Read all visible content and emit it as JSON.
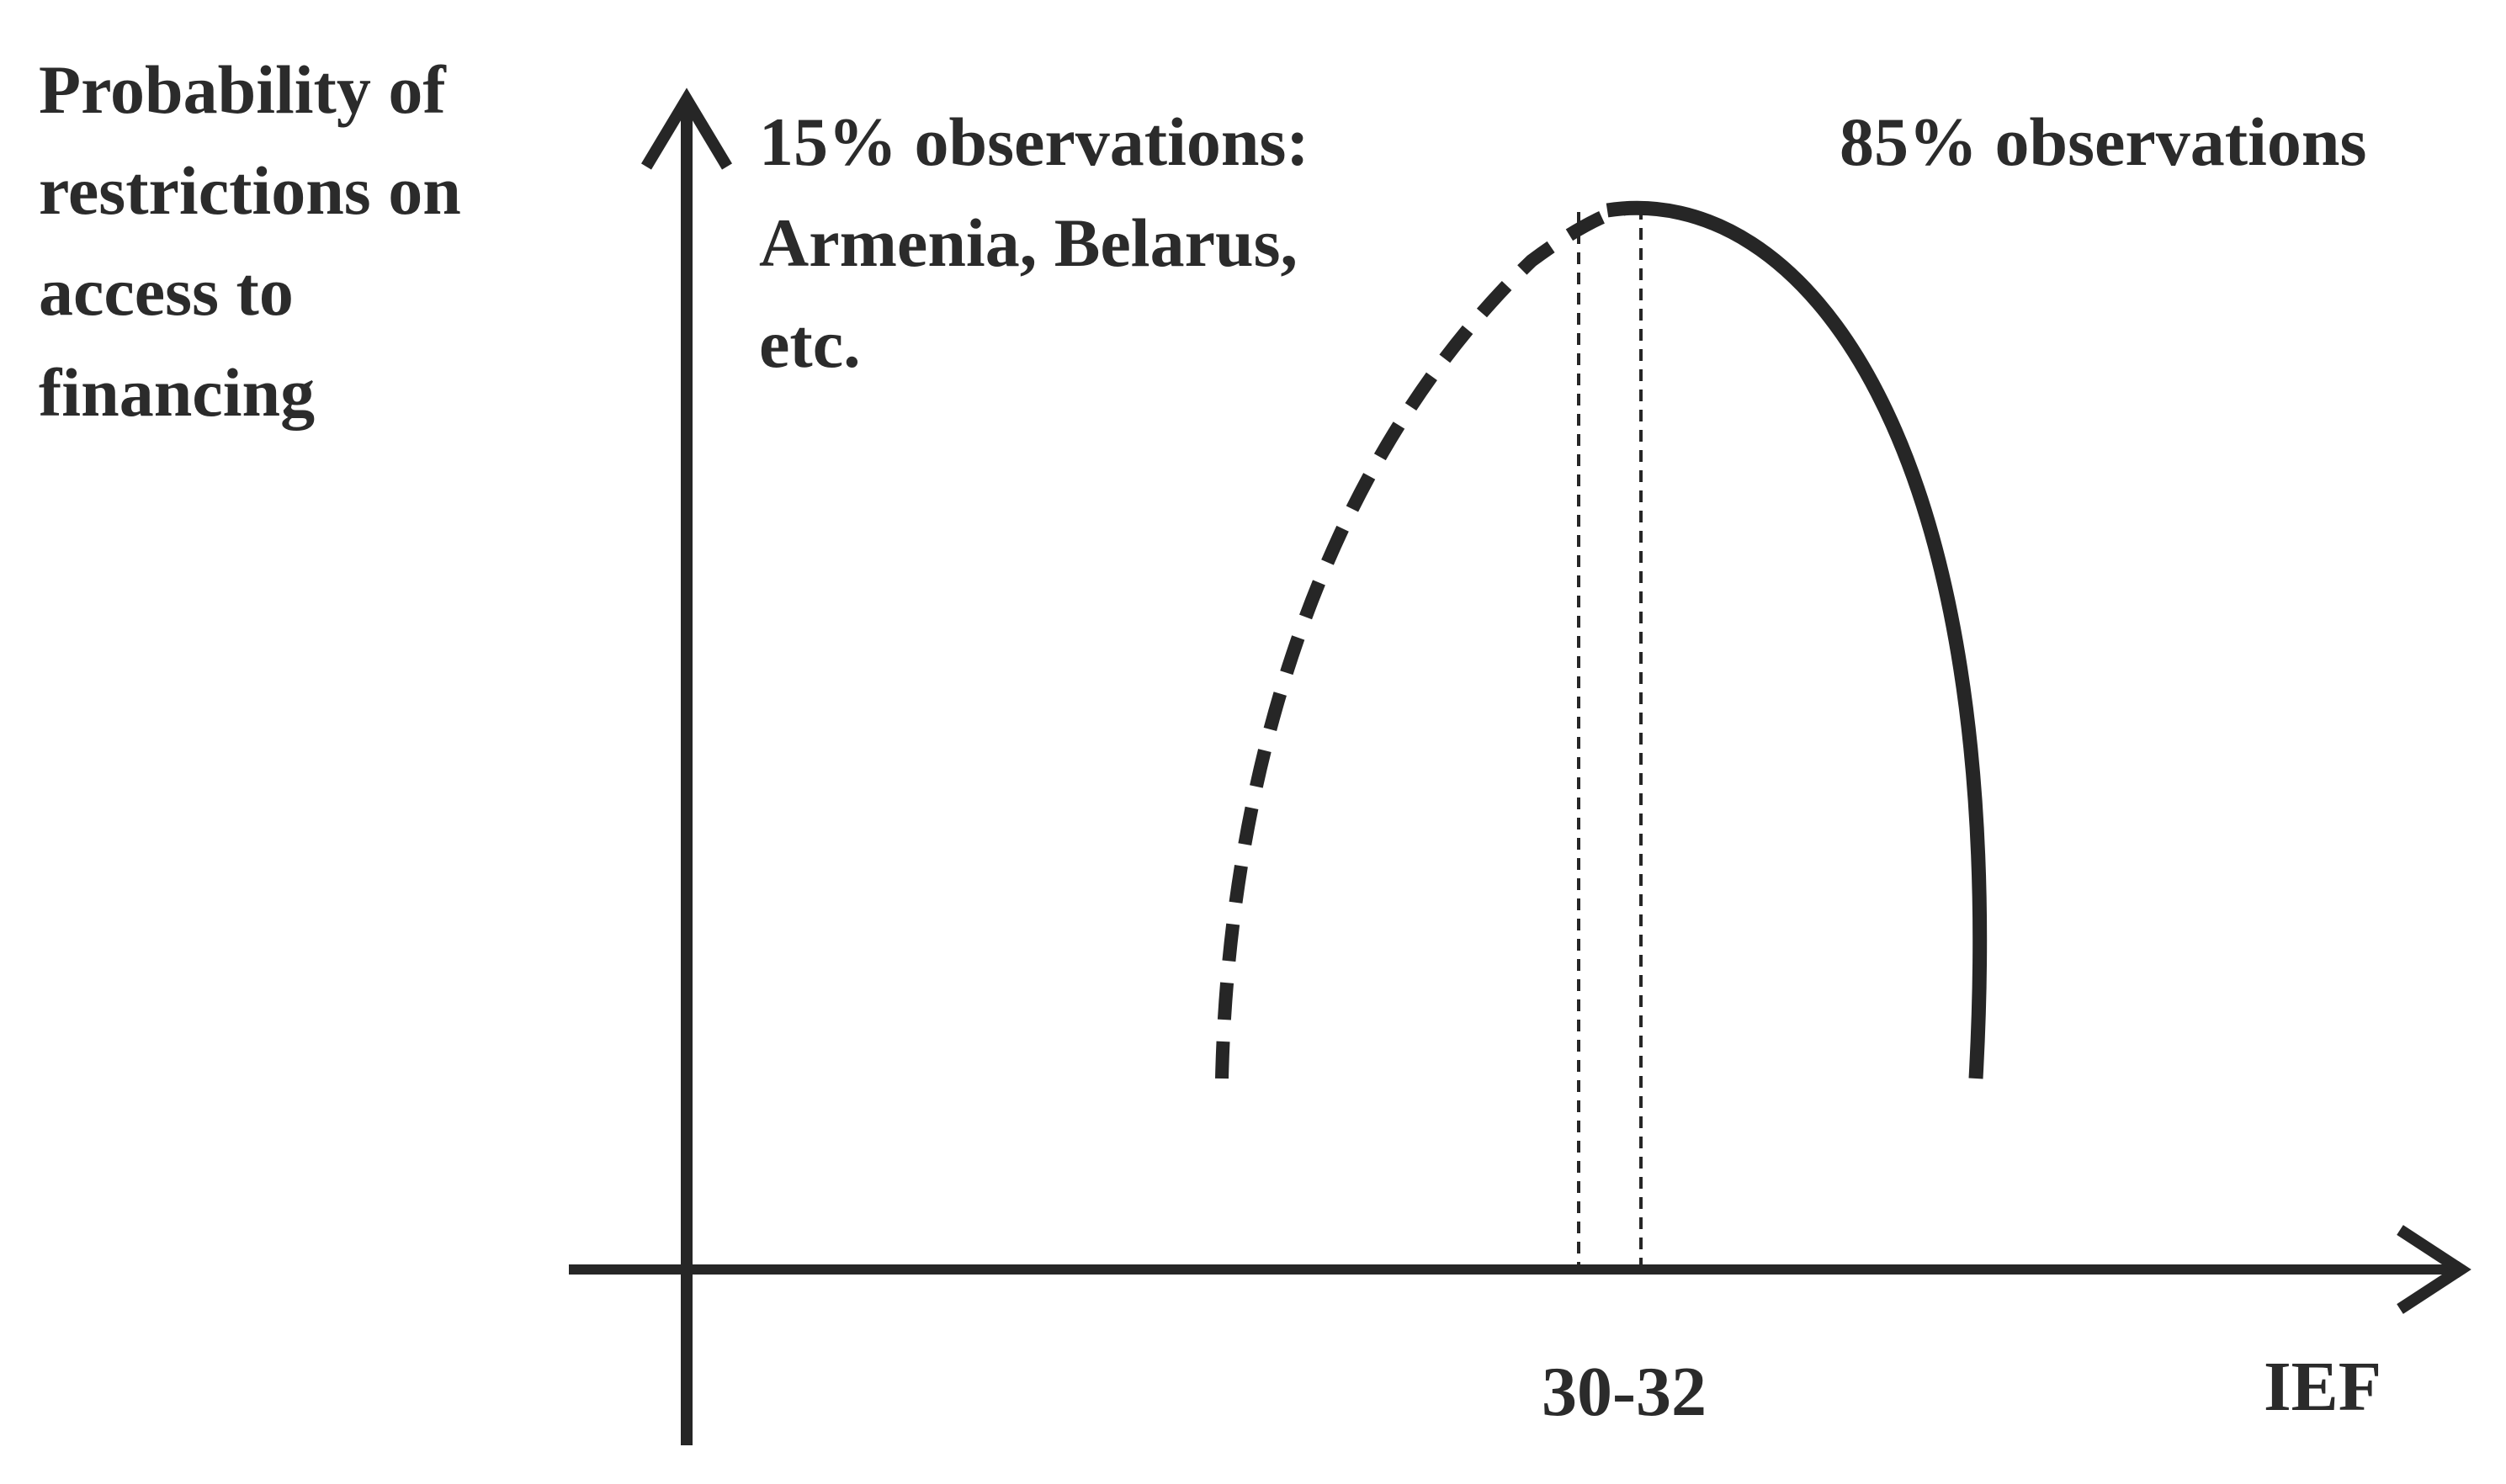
{
  "y_axis_label": [
    "Probability of",
    "restrictions on",
    "access to",
    "financing"
  ],
  "left_annotation": [
    "15% observations:",
    "Armenia, Belarus,",
    "etc."
  ],
  "right_annotation": "85% observations",
  "x_tick_label": "30-32",
  "x_axis_label": "IEF",
  "line_color": "#262626"
}
